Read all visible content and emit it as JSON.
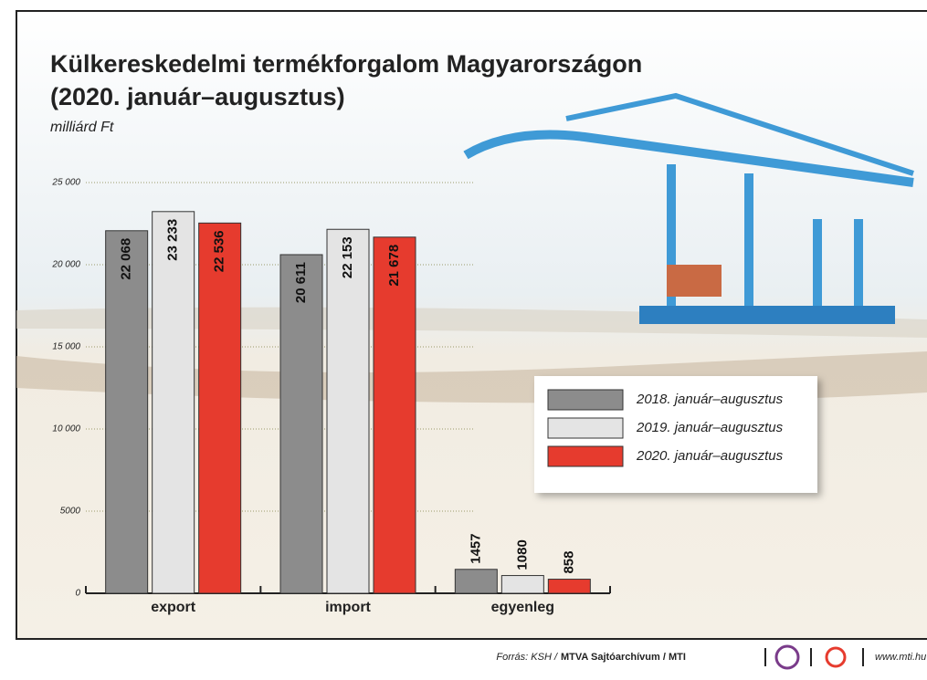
{
  "chart_data": {
    "type": "bar",
    "title": "Külkereskedelmi termékforgalom Magyarországon",
    "subtitle": "(2020. január–augusztus)",
    "y_label": "milliárd Ft",
    "categories": [
      "export",
      "import",
      "egyenleg"
    ],
    "series": [
      {
        "name": "2018. január–augusztus",
        "color": "#8c8c8c",
        "values": [
          22068,
          20611,
          1457
        ],
        "value_labels": [
          "22 068",
          "20 611",
          "1457"
        ]
      },
      {
        "name": "2019. január–augusztus",
        "color": "#e4e4e4",
        "values": [
          23233,
          22153,
          1080
        ],
        "value_labels": [
          "23 233",
          "22 153",
          "1080"
        ]
      },
      {
        "name": "2020. január–augusztus",
        "color": "#e63b2e",
        "values": [
          22536,
          21678,
          858
        ],
        "value_labels": [
          "22 536",
          "21 678",
          "858"
        ]
      }
    ],
    "ylim": [
      0,
      25000
    ],
    "yticks": [
      0,
      5000,
      {
        "value": 10000,
        "label": "10 000"
      },
      {
        "value": 15000,
        "label": "15 000"
      },
      {
        "value": 20000,
        "label": "20 000"
      },
      {
        "value": 25000,
        "label": "25 000"
      }
    ],
    "grid": true
  },
  "footer": {
    "source_prefix": "Forrás: KSH /",
    "source_bold": "MTVA Sajtóarchívum / MTI",
    "website": "www.mti.hu"
  }
}
